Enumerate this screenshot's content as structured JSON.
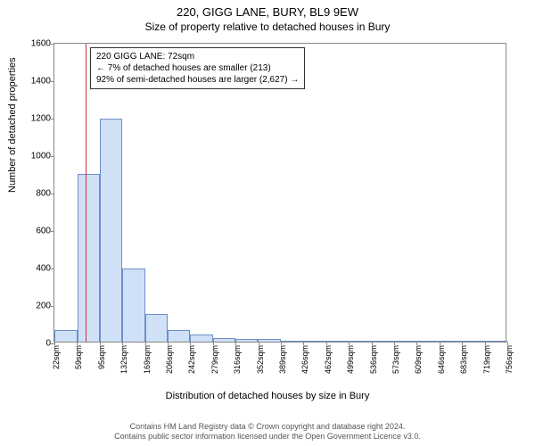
{
  "title": "220, GIGG LANE, BURY, BL9 9EW",
  "subtitle": "Size of property relative to detached houses in Bury",
  "y_label": "Number of detached properties",
  "x_label": "Distribution of detached houses by size in Bury",
  "chart": {
    "type": "histogram",
    "ylim": [
      0,
      1600
    ],
    "y_ticks": [
      0,
      200,
      400,
      600,
      800,
      1000,
      1200,
      1400,
      1600
    ],
    "x_tick_labels": [
      "22sqm",
      "59sqm",
      "95sqm",
      "132sqm",
      "169sqm",
      "206sqm",
      "242sqm",
      "279sqm",
      "316sqm",
      "352sqm",
      "389sqm",
      "426sqm",
      "462sqm",
      "499sqm",
      "536sqm",
      "573sqm",
      "609sqm",
      "646sqm",
      "683sqm",
      "719sqm",
      "756sqm"
    ],
    "x_min": 22,
    "x_max": 756,
    "bars": [
      {
        "x_start": 22,
        "x_end": 59,
        "value": 60
      },
      {
        "x_start": 59,
        "x_end": 95,
        "value": 895
      },
      {
        "x_start": 95,
        "x_end": 132,
        "value": 1190
      },
      {
        "x_start": 132,
        "x_end": 169,
        "value": 390
      },
      {
        "x_start": 169,
        "x_end": 206,
        "value": 150
      },
      {
        "x_start": 206,
        "x_end": 242,
        "value": 60
      },
      {
        "x_start": 242,
        "x_end": 279,
        "value": 40
      },
      {
        "x_start": 279,
        "x_end": 316,
        "value": 20
      },
      {
        "x_start": 316,
        "x_end": 352,
        "value": 15
      },
      {
        "x_start": 352,
        "x_end": 389,
        "value": 15
      },
      {
        "x_start": 389,
        "x_end": 426,
        "value": 5
      },
      {
        "x_start": 426,
        "x_end": 462,
        "value": 5
      },
      {
        "x_start": 462,
        "x_end": 499,
        "value": 3
      },
      {
        "x_start": 499,
        "x_end": 536,
        "value": 3
      },
      {
        "x_start": 536,
        "x_end": 573,
        "value": 2
      },
      {
        "x_start": 573,
        "x_end": 609,
        "value": 2
      },
      {
        "x_start": 609,
        "x_end": 646,
        "value": 2
      },
      {
        "x_start": 646,
        "x_end": 683,
        "value": 2
      },
      {
        "x_start": 683,
        "x_end": 719,
        "value": 2
      },
      {
        "x_start": 719,
        "x_end": 756,
        "value": 2
      }
    ],
    "bar_fill": "#cfe0f7",
    "bar_stroke": "#6d8fc7",
    "marker_value": 72,
    "marker_color": "#cc3333",
    "plot_border_color": "#888888",
    "background_color": "#ffffff"
  },
  "annotation": {
    "line1": "220 GIGG LANE: 72sqm",
    "line2": "← 7% of detached houses are smaller (213)",
    "line3": "92% of semi-detached houses are larger (2,627) →"
  },
  "footer": {
    "line1": "Contains HM Land Registry data © Crown copyright and database right 2024.",
    "line2": "Contains public sector information licensed under the Open Government Licence v3.0."
  }
}
